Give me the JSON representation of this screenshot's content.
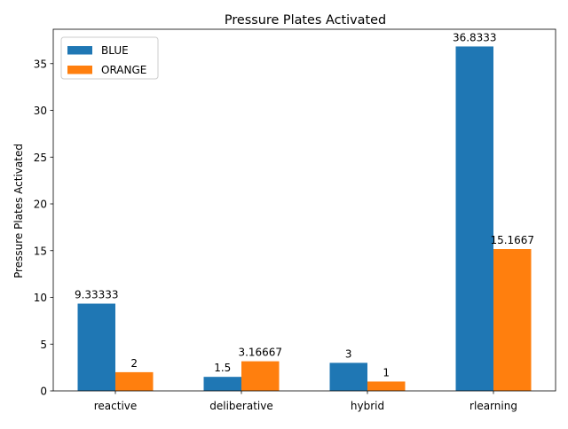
{
  "chart_data": {
    "type": "bar",
    "title": "Pressure Plates Activated",
    "xlabel": "",
    "ylabel": "Pressure Plates Activated",
    "categories": [
      "reactive",
      "deliberative",
      "hybrid",
      "rlearning"
    ],
    "series": [
      {
        "name": "BLUE",
        "color": "#1f77b4",
        "values": [
          9.33333,
          1.5,
          3,
          36.8333
        ],
        "labels": [
          "9.33333",
          "1.5",
          "3",
          "36.8333"
        ]
      },
      {
        "name": "ORANGE",
        "color": "#ff7f0e",
        "values": [
          2,
          3.16667,
          1,
          15.1667
        ],
        "labels": [
          "2",
          "3.16667",
          "1",
          "15.1667"
        ]
      }
    ],
    "ylim": [
      0,
      38.675
    ],
    "yticks": [
      0,
      5,
      10,
      15,
      20,
      25,
      30,
      35
    ],
    "grid": false,
    "legend": "top-left"
  }
}
